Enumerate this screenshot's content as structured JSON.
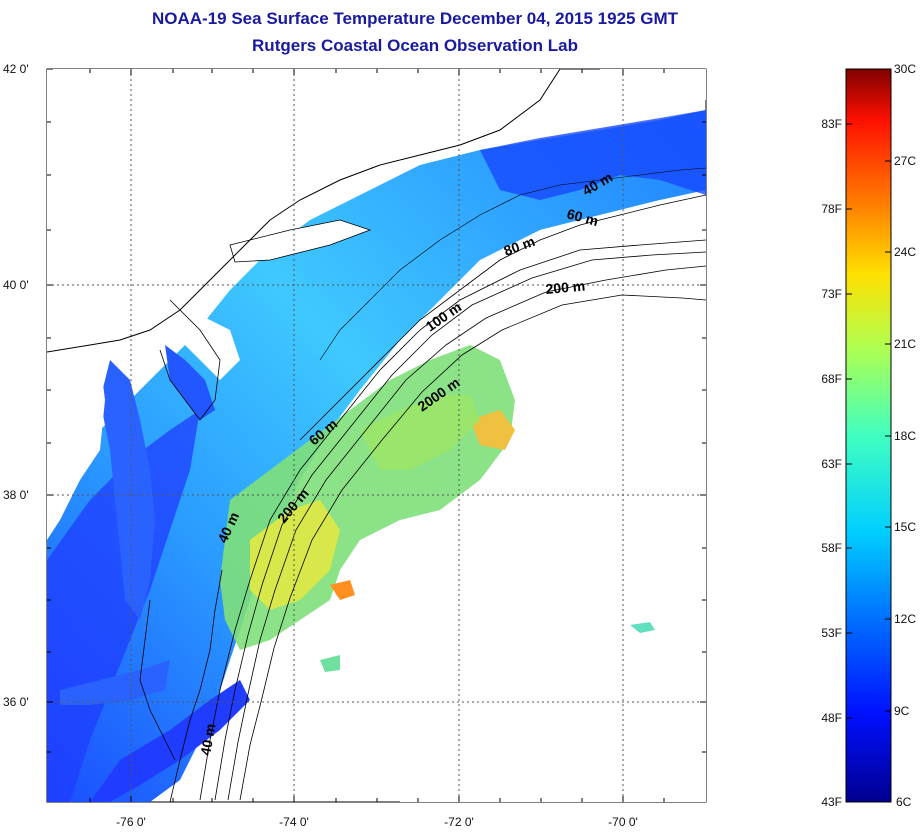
{
  "title": "NOAA-19 Sea Surface Temperature December 04, 2015 1925 GMT",
  "subtitle": "Rutgers Coastal Ocean Observation Lab",
  "map": {
    "lat_labels": [
      "42 0'",
      "40 0'",
      "38 0'",
      "36 0'"
    ],
    "lon_labels": [
      "-76 0'",
      "-74 0'",
      "-72 0'",
      "-70 0'"
    ],
    "isobath_labels": [
      "40 m",
      "60 m",
      "80 m",
      "200 m",
      "100 m",
      "2000 m",
      "60 m",
      "200 m",
      "40 m",
      "40 m"
    ]
  },
  "colorbar": {
    "f_labels": [
      "83F",
      "78F",
      "73F",
      "68F",
      "63F",
      "58F",
      "53F",
      "48F",
      "43F"
    ],
    "c_labels": [
      "30C",
      "27C",
      "24C",
      "21C",
      "18C",
      "15C",
      "12C",
      "9C",
      "6C"
    ]
  },
  "colors": {
    "title": "#1a1aa0",
    "land": "#ffffff",
    "cold": "#0a2aff",
    "warm": "#f2e640"
  }
}
